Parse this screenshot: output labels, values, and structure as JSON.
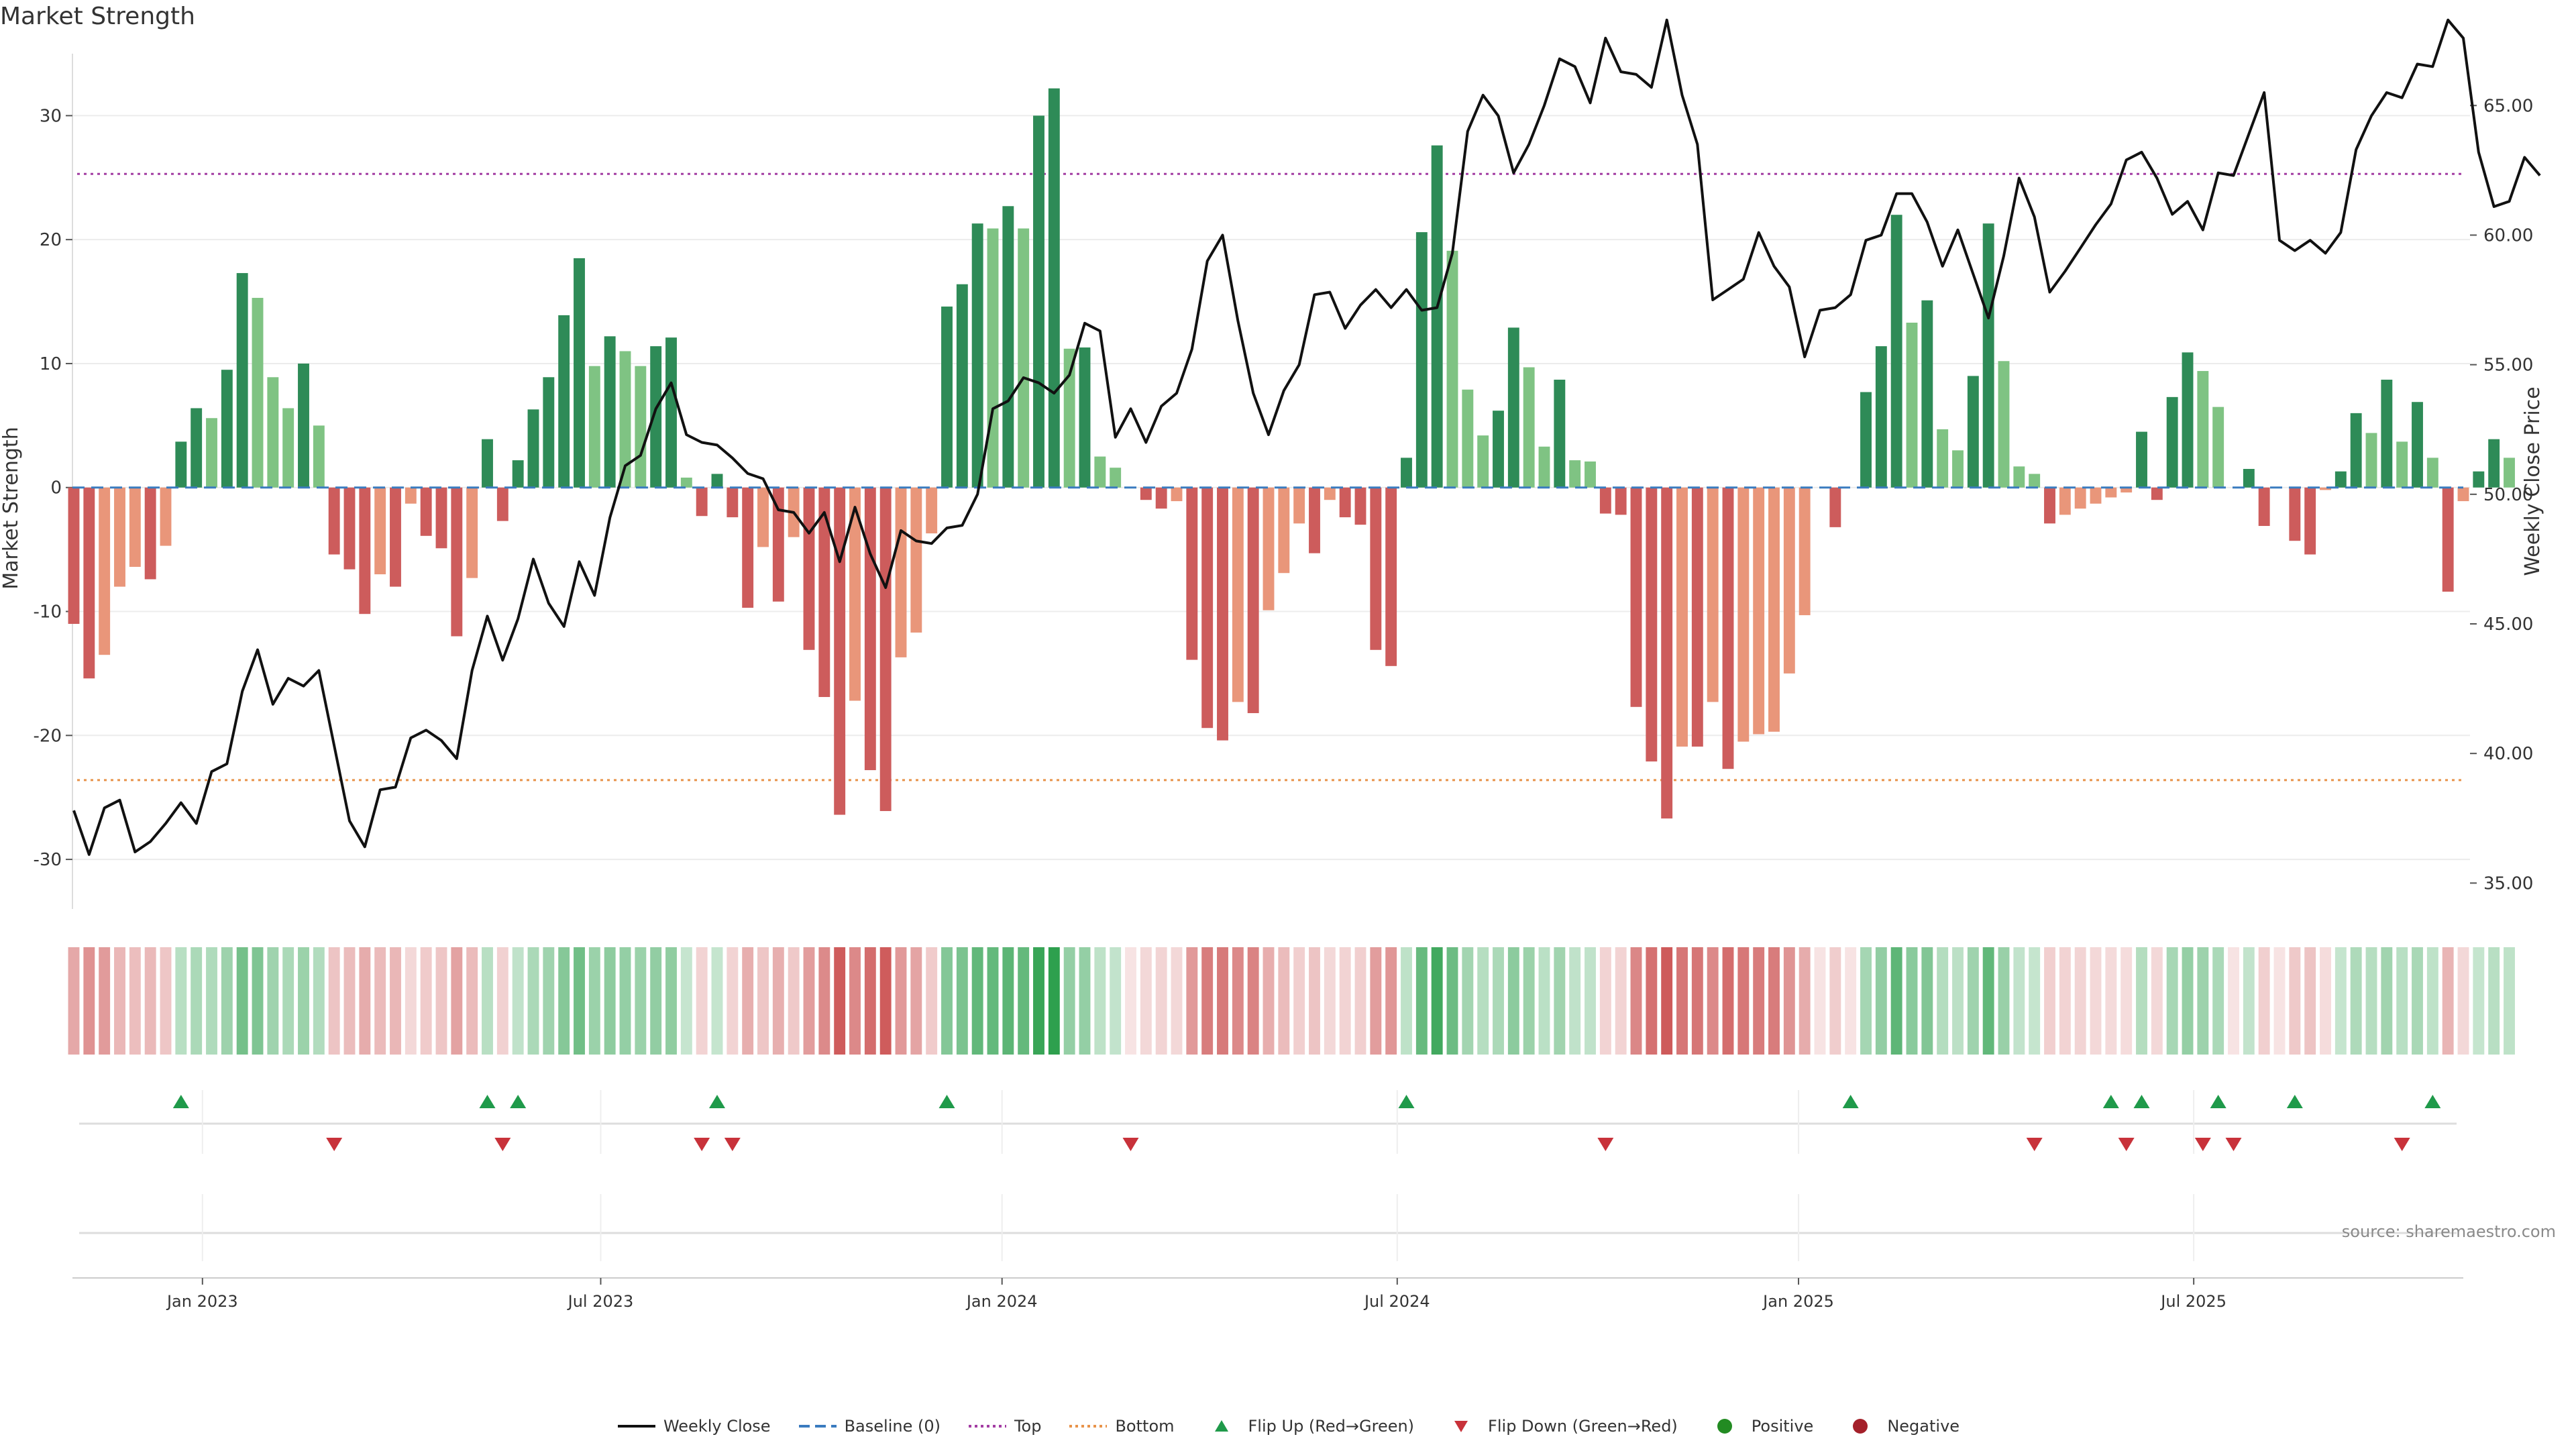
{
  "chart_data": {
    "type": "bar+line",
    "title": "Market Strength",
    "ylabel_left": "Market Strength",
    "ylabel_right": "Weekly Close Price",
    "source": "source: sharemaestro.com",
    "yticks_left": [
      30,
      20,
      10,
      0,
      -10,
      -20,
      -30
    ],
    "yticks_right": [
      "65.00",
      "60.00",
      "55.00",
      "50.00",
      "45.00",
      "40.00",
      "35.00"
    ],
    "ylim_left": [
      -34,
      35
    ],
    "ylim_right": [
      34,
      67
    ],
    "top_line": 25.3,
    "bottom_line": -23.6,
    "x_ticks": [
      "Jan 2023",
      "Jul 2023",
      "Jan 2024",
      "Jul 2024",
      "Jan 2025",
      "Jul 2025"
    ],
    "x_tick_weeks": [
      8.4,
      34.4,
      60.6,
      86.4,
      112.6,
      138.4
    ],
    "weeks": 157,
    "strength": [
      -11,
      -15.4,
      -13.5,
      -8,
      -6.4,
      -7.4,
      -4.7,
      3.7,
      6.4,
      5.6,
      9.5,
      17.3,
      15.3,
      8.9,
      6.4,
      10,
      5,
      -5.4,
      -6.6,
      -10.2,
      -7,
      -8,
      -1.3,
      -3.9,
      -4.9,
      -12,
      -7.3,
      3.9,
      -2.7,
      2.2,
      6.3,
      8.9,
      13.9,
      18.5,
      9.8,
      12.2,
      11,
      9.8,
      11.4,
      12.1,
      0.8,
      -2.3,
      1.1,
      -2.4,
      -9.7,
      -4.8,
      -9.2,
      -4,
      -13.1,
      -16.9,
      -26.4,
      -17.2,
      -22.8,
      -26.1,
      -13.7,
      -11.7,
      -3.7,
      14.6,
      16.4,
      21.3,
      20.9,
      22.7,
      20.9,
      30,
      32.2,
      11.2,
      11.3,
      2.5,
      1.6,
      0,
      -1,
      -1.7,
      -1.1,
      -13.9,
      -19.4,
      -20.4,
      -17.3,
      -18.2,
      -9.9,
      -6.9,
      -2.9,
      -5.3,
      -1,
      -2.4,
      -3,
      -13.1,
      -14.4,
      2.4,
      20.6,
      27.6,
      19.1,
      7.9,
      4.2,
      6.2,
      12.9,
      9.7,
      3.3,
      8.7,
      2.2,
      2.1,
      -2.1,
      -2.2,
      -17.7,
      -22.1,
      -26.7,
      -20.9,
      -20.9,
      -17.3,
      -22.7,
      -20.5,
      -19.9,
      -19.7,
      -15,
      -10.3,
      0,
      -3.2,
      0,
      7.7,
      11.4,
      22,
      13.3,
      15.1,
      4.7,
      3,
      9,
      21.3,
      10.2,
      1.7,
      1.1,
      -2.9,
      -2.2,
      -1.7,
      -1.3,
      -0.8,
      -0.4,
      4.5,
      -1,
      7.3,
      10.9,
      9.4,
      6.5,
      0,
      1.5,
      -3.1,
      0,
      -4.3,
      -5.4,
      -0.2,
      1.3,
      6,
      4.4,
      8.7,
      3.7,
      6.9,
      2.4,
      -8.4,
      -1.1,
      1.3,
      3.9,
      2.4
    ],
    "close": [
      37.8,
      36.1,
      37.9,
      38.2,
      36.2,
      36.6,
      37.3,
      38.1,
      37.3,
      39.3,
      39.6,
      42.4,
      44,
      41.9,
      42.9,
      42.6,
      43.2,
      40.3,
      37.4,
      36.4,
      38.6,
      38.7,
      40.6,
      40.9,
      40.5,
      39.8,
      43.2,
      45.3,
      43.6,
      45.2,
      47.5,
      45.8,
      44.9,
      47.4,
      46.1,
      49.1,
      51.1,
      51.5,
      53.3,
      54.3,
      52.3,
      52,
      51.9,
      51.4,
      50.8,
      50.6,
      49.4,
      49.3,
      48.5,
      49.3,
      47.4,
      49.5,
      47.7,
      46.4,
      48.6,
      48.2,
      48.1,
      48.7,
      48.8,
      50,
      53.3,
      53.6,
      54.5,
      54.3,
      53.9,
      54.6,
      56.6,
      56.3,
      52.2,
      53.3,
      52,
      53.4,
      53.9,
      55.6,
      59,
      60,
      56.7,
      53.9,
      52.3,
      54,
      55,
      57.7,
      57.8,
      56.4,
      57.3,
      57.9,
      57.2,
      57.9,
      57.1,
      57.2,
      59.3,
      64,
      65.4,
      64.6,
      62.4,
      63.5,
      65,
      66.8,
      66.5,
      65.1,
      67.6,
      66.3,
      66.2,
      65.7,
      68.3,
      65.4,
      63.5,
      57.5,
      57.9,
      58.3,
      60.1,
      58.8,
      58,
      55.3,
      57.1,
      57.2,
      57.7,
      59.8,
      60,
      61.6,
      61.6,
      60.5,
      58.8,
      60.2,
      58.5,
      56.8,
      59.2,
      62.2,
      60.7,
      57.8,
      58.6,
      59.5,
      60.4,
      61.2,
      62.9,
      63.2,
      62.2,
      60.8,
      61.3,
      60.2,
      62.4,
      62.3,
      63.9,
      65.5,
      59.8,
      59.4,
      59.8,
      59.3,
      60.1,
      63.3,
      64.6,
      65.5,
      65.3,
      66.6,
      66.5,
      68.3,
      67.6,
      63.2,
      61.1,
      61.3,
      63,
      62.3
    ],
    "flips_up": [
      7,
      27,
      29,
      42,
      57,
      87,
      116,
      133,
      135,
      140,
      145,
      154
    ],
    "flips_down": [
      17,
      28,
      41,
      43,
      69,
      100,
      128,
      134,
      139,
      141,
      152
    ],
    "legend": [
      {
        "label": "Weekly Close",
        "kind": "line",
        "color": "#111111"
      },
      {
        "label": "Baseline (0)",
        "kind": "dash",
        "color": "#3a7bbf"
      },
      {
        "label": "Top",
        "kind": "dot",
        "color": "#a33da3"
      },
      {
        "label": "Bottom",
        "kind": "dot",
        "color": "#e8934a"
      },
      {
        "label": "Flip Up (Red→Green)",
        "kind": "tri-up",
        "color": "#1f9a4a"
      },
      {
        "label": "Flip Down (Green→Red)",
        "kind": "tri-down",
        "color": "#c8323a"
      },
      {
        "label": "Positive",
        "kind": "circle",
        "color": "#228b22"
      },
      {
        "label": "Negative",
        "kind": "circle",
        "color": "#a4202a"
      }
    ],
    "colors": {
      "pos_strong": "#2e8b57",
      "pos_light": "#7fc383",
      "neg_strong": "#cd5c5c",
      "neg_light": "#e9967a",
      "line": "#111111",
      "top": "#a33da3",
      "bottom": "#e8934a",
      "baseline": "#3a7bbf"
    }
  }
}
